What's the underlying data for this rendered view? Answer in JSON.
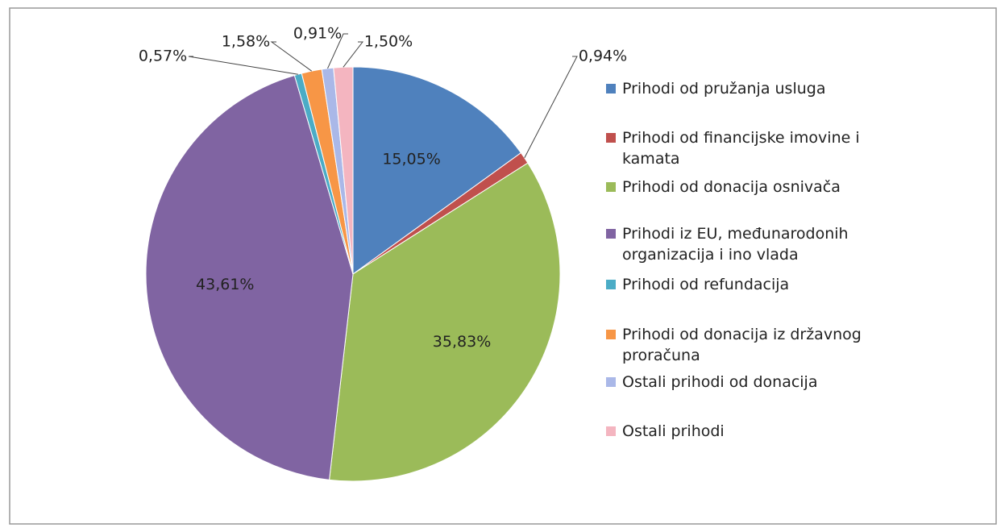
{
  "chart_data": {
    "type": "pie",
    "categories": [
      "Prihodi od pružanja usluga",
      "Prihodi od financijske imovine i kamata",
      "Prihodi od donacija osnivača",
      "Prihodi iz EU, međunarodonih organizacija i ino vlada",
      "Prihodi od refundacija",
      "Prihodi od donacija iz državnog proračuna",
      "Ostali prihodi od donacija",
      "Ostali prihodi"
    ],
    "values": [
      15.05,
      0.94,
      35.83,
      43.61,
      0.57,
      1.58,
      0.91,
      1.5
    ],
    "value_labels": [
      "15,05%",
      "0,94%",
      "35,83%",
      "43,61%",
      "0,57%",
      "1,58%",
      "0,91%",
      "1,50%"
    ],
    "colors": [
      "#4f81bd",
      "#c0504d",
      "#9bbb59",
      "#8064a2",
      "#4bacc6",
      "#f79646",
      "#aab8e8",
      "#f4b5c0"
    ],
    "legend": "right"
  }
}
